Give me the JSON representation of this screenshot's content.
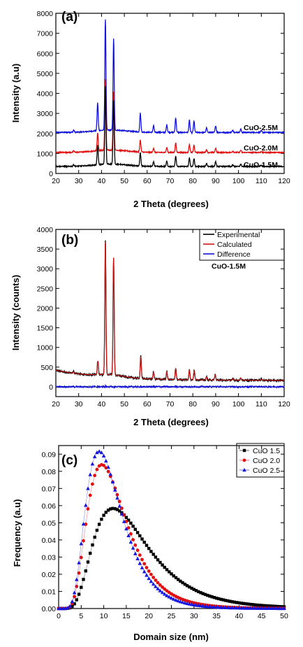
{
  "chart_data": [
    {
      "panel_label": "(a)",
      "type": "line",
      "xlabel": "2 Theta (degrees)",
      "ylabel": "Intensity (a.u)",
      "xlim": [
        20,
        120
      ],
      "ylim": [
        0,
        8000
      ],
      "x_ticks": [
        "20",
        "30",
        "40",
        "50",
        "60",
        "70",
        "80",
        "90",
        "100",
        "110",
        "120"
      ],
      "y_ticks": [
        "0",
        "1000",
        "2000",
        "3000",
        "4000",
        "5000",
        "6000",
        "7000",
        "8000"
      ],
      "peaks": [
        {
          "pos": 27.8,
          "rel": 0.02
        },
        {
          "pos": 38.3,
          "rel": 0.25
        },
        {
          "pos": 41.7,
          "rel": 1.0
        },
        {
          "pos": 45.3,
          "rel": 0.82
        },
        {
          "pos": 57.0,
          "rel": 0.17
        },
        {
          "pos": 62.8,
          "rel": 0.06
        },
        {
          "pos": 68.6,
          "rel": 0.07
        },
        {
          "pos": 72.5,
          "rel": 0.13
        },
        {
          "pos": 78.5,
          "rel": 0.11
        },
        {
          "pos": 80.5,
          "rel": 0.1
        },
        {
          "pos": 86.0,
          "rel": 0.04
        },
        {
          "pos": 90.0,
          "rel": 0.06
        },
        {
          "pos": 97.5,
          "rel": 0.02
        },
        {
          "pos": 101.0,
          "rel": 0.03
        },
        {
          "pos": 110.0,
          "rel": 0.015
        }
      ],
      "series": [
        {
          "name": "CuO-2.5M",
          "color": "#1010e0",
          "baseline": 2050,
          "max": 7600
        },
        {
          "name": "CuO-2.0M",
          "color": "#e01010",
          "baseline": 1050,
          "max": 4600
        },
        {
          "name": "CuO-1.5M",
          "color": "#000000",
          "baseline": 350,
          "max": 4250
        }
      ]
    },
    {
      "panel_label": "(b)",
      "type": "line",
      "xlabel": "2 Theta (degrees)",
      "ylabel": "Intensity (counts)",
      "xlim": [
        20,
        120
      ],
      "ylim": [
        -250,
        4000
      ],
      "x_ticks": [
        "20",
        "30",
        "40",
        "50",
        "60",
        "70",
        "80",
        "90",
        "100",
        "110",
        "120"
      ],
      "y_ticks": [
        "0",
        "500",
        "1000",
        "1500",
        "2000",
        "2500",
        "3000",
        "3500",
        "4000"
      ],
      "annotation": "CuO-1.5M",
      "peaks": [
        {
          "pos": 27.8,
          "h": 40
        },
        {
          "pos": 38.4,
          "h": 350
        },
        {
          "pos": 41.7,
          "h": 3380
        },
        {
          "pos": 45.3,
          "h": 2990
        },
        {
          "pos": 57.2,
          "h": 560
        },
        {
          "pos": 62.8,
          "h": 170
        },
        {
          "pos": 68.6,
          "h": 190
        },
        {
          "pos": 72.5,
          "h": 280
        },
        {
          "pos": 78.5,
          "h": 250
        },
        {
          "pos": 80.6,
          "h": 230
        },
        {
          "pos": 86.0,
          "h": 80
        },
        {
          "pos": 89.8,
          "h": 130
        },
        {
          "pos": 97.6,
          "h": 40
        },
        {
          "pos": 101.0,
          "h": 60
        },
        {
          "pos": 110.0,
          "h": 30
        }
      ],
      "series": [
        {
          "name": "Experimental",
          "color": "#000000"
        },
        {
          "name": "Calculated",
          "color": "#d01818"
        },
        {
          "name": "Difference",
          "color": "#1010d0"
        }
      ],
      "legend": "top-right"
    },
    {
      "panel_label": "(c)",
      "type": "scatter",
      "xlabel": "Domain size (nm)",
      "ylabel": "Frequency (a.u)",
      "xlim": [
        0,
        50
      ],
      "ylim": [
        0,
        0.095
      ],
      "x_ticks": [
        "0",
        "5",
        "10",
        "15",
        "20",
        "25",
        "30",
        "35",
        "40",
        "45",
        "50"
      ],
      "y_ticks": [
        "0.00",
        "0.01",
        "0.02",
        "0.03",
        "0.04",
        "0.05",
        "0.06",
        "0.07",
        "0.08",
        "0.09"
      ],
      "series": [
        {
          "name": "CuO 1.5",
          "color": "#000000",
          "marker": "square",
          "median": 15.5,
          "sigma": 0.5
        },
        {
          "name": "CuO 2.0",
          "color": "#e01010",
          "marker": "circle",
          "median": 11.7,
          "sigma": 0.45
        },
        {
          "name": "CuO 2.5",
          "color": "#1515e0",
          "marker": "triangle",
          "median": 10.9,
          "sigma": 0.44
        }
      ],
      "legend": "top-right"
    }
  ]
}
